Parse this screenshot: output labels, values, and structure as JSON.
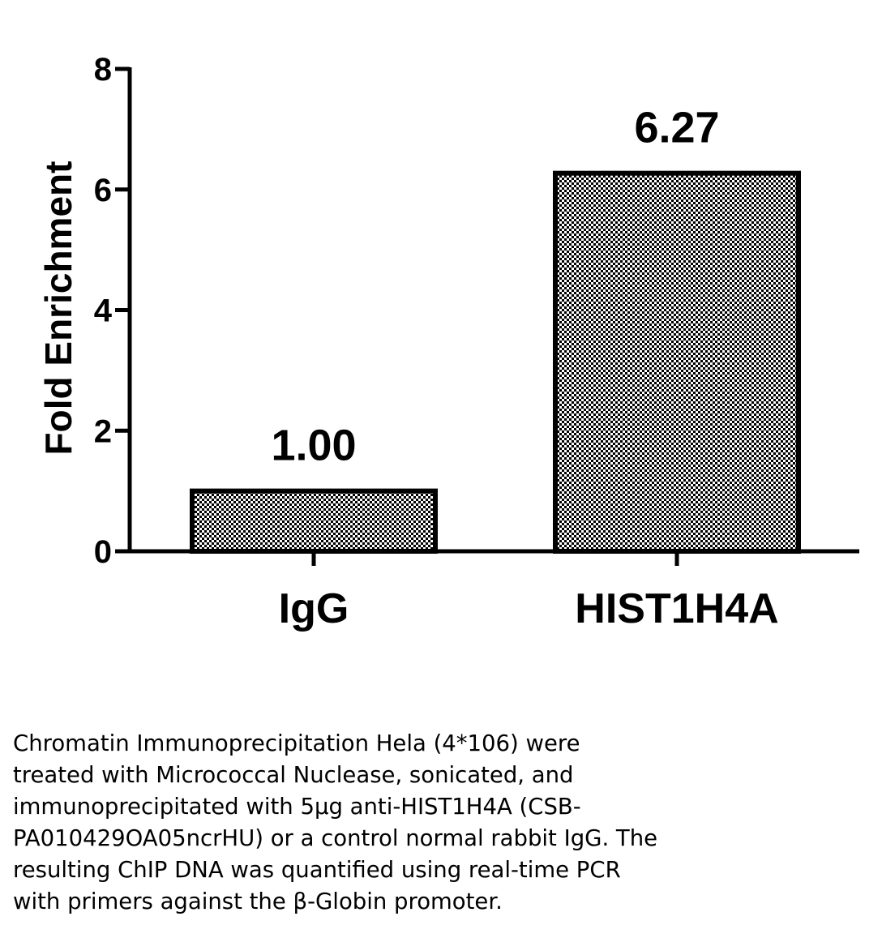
{
  "chart_data": {
    "type": "bar",
    "categories": [
      "IgG",
      "HIST1H4A"
    ],
    "values": [
      1.0,
      6.27
    ],
    "data_labels": [
      "1.00",
      "6.27"
    ],
    "ylabel": "Fold Enrichment",
    "ylim": [
      0,
      8
    ],
    "yticks": [
      "0",
      "2",
      "4",
      "6",
      "8"
    ],
    "grid": false,
    "bar_fill": "checkered",
    "bar_color": "#000000"
  },
  "caption_lines": [
    "Chromatin Immunoprecipitation Hela (4*106) were",
    "treated with Micrococcal Nuclease, sonicated, and",
    "immunoprecipitated with 5μg anti-HIST1H4A (CSB-",
    "PA010429OA05ncrHU) or a control normal rabbit IgG. The",
    "resulting ChIP DNA was quantified using real-time PCR",
    "with primers against the β-Globin promoter."
  ]
}
